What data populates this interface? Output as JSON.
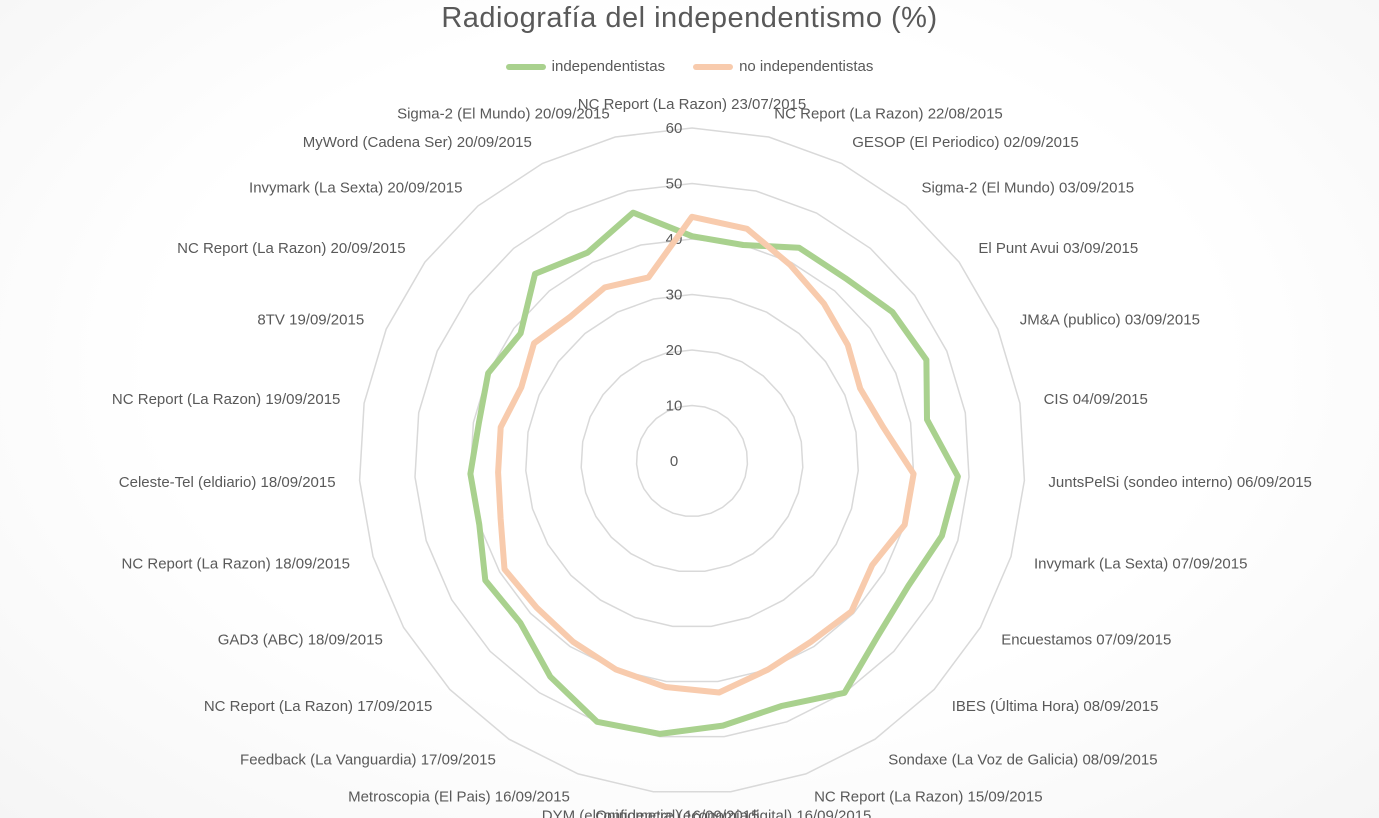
{
  "chart_data": {
    "type": "radar",
    "title": "Radiografía del independentismo (%)",
    "categories": [
      "NC Report (La Razon) 23/07/2015",
      "NC Report (La Razon) 22/08/2015",
      "GESOP (El Periodico) 02/09/2015",
      "Sigma-2 (El Mundo) 03/09/2015",
      "El Punt Avui 03/09/2015",
      "JM&A (publico) 03/09/2015",
      "CIS 04/09/2015",
      "JuntsPelSi (sondeo interno) 06/09/2015",
      "Invymark (La Sexta) 07/09/2015",
      "Encuestamos 07/09/2015",
      "IBES (Última Hora) 08/09/2015",
      "Sondaxe (La Voz de Galicia) 08/09/2015",
      "NC Report (La Razon) 15/09/2015",
      "Opinometre (economiadigital) 16/09/2015",
      "DYM (elconfidencial) 16/09/2015",
      "Metroscopia (El Pais) 16/09/2015",
      "Feedback (La Vanguardia) 17/09/2015",
      "NC Report (La Razon) 17/09/2015",
      "GAD3 (ABC) 18/09/2015",
      "NC Report (La Razon) 18/09/2015",
      "Celeste-Tel (eldiario) 18/09/2015",
      "NC Report (La Razon) 19/09/2015",
      "8TV 19/09/2015",
      "NC Report (La Razon) 20/09/2015",
      "Invymark (La Sexta) 20/09/2015",
      "MyWord (Cadena Ser) 20/09/2015",
      "Sigma-2 (El Mundo) 20/09/2015"
    ],
    "series": [
      {
        "name": "independentistas",
        "color": "#a9d18e",
        "values": [
          40.5,
          40,
          43,
          43,
          45,
          46,
          43,
          48,
          47,
          45,
          46,
          50,
          47,
          48,
          49.5,
          50,
          46.5,
          42.5,
          43,
          40,
          40,
          39,
          40,
          38.5,
          44,
          42,
          46
        ]
      },
      {
        "name": "no independentistas",
        "color": "#f8cbad",
        "values": [
          44,
          43,
          39.5,
          37,
          35,
          33,
          35,
          40,
          40,
          37.5,
          39.5,
          39,
          40,
          42,
          41,
          40,
          39,
          38.5,
          39,
          36,
          35,
          35,
          33.5,
          35.5,
          34,
          35,
          34
        ]
      }
    ],
    "rlim": [
      0,
      60
    ],
    "ticks": [
      "0",
      "10",
      "20",
      "30",
      "40",
      "50",
      "60"
    ],
    "legend_position": "top",
    "grid": true
  }
}
